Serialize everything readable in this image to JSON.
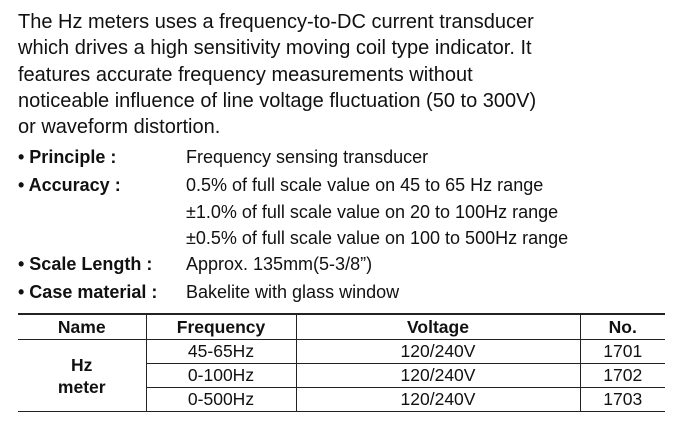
{
  "intro": [
    "The Hz meters uses a frequency-to-DC current transducer",
    "which drives a high sensitivity moving coil type indicator. It",
    "features accurate frequency measurements without",
    "noticeable influence of line voltage fluctuation (50 to 300V)",
    "or waveform distortion."
  ],
  "specs": [
    {
      "label": "• Principle :",
      "values": [
        "Frequency sensing transducer"
      ]
    },
    {
      "label": "• Accuracy :",
      "values": [
        "0.5% of full scale value on 45 to 65 Hz range",
        "±1.0% of full scale value on 20 to 100Hz range",
        "±0.5% of full scale value on 100 to 500Hz range"
      ]
    },
    {
      "label": "• Scale Length :",
      "values": [
        "Approx. 135mm(5-3/8”)"
      ]
    },
    {
      "label": "• Case material :",
      "values": [
        "Bakelite with glass window"
      ]
    }
  ],
  "table": {
    "headers": [
      "Name",
      "Frequency",
      "Voltage",
      "No."
    ],
    "name_line1": "Hz",
    "name_line2": "meter",
    "rows": [
      [
        "45-65Hz",
        "120/240V",
        "1701"
      ],
      [
        "0-100Hz",
        "120/240V",
        "1702"
      ],
      [
        "0-500Hz",
        "120/240V",
        "1703"
      ]
    ]
  }
}
